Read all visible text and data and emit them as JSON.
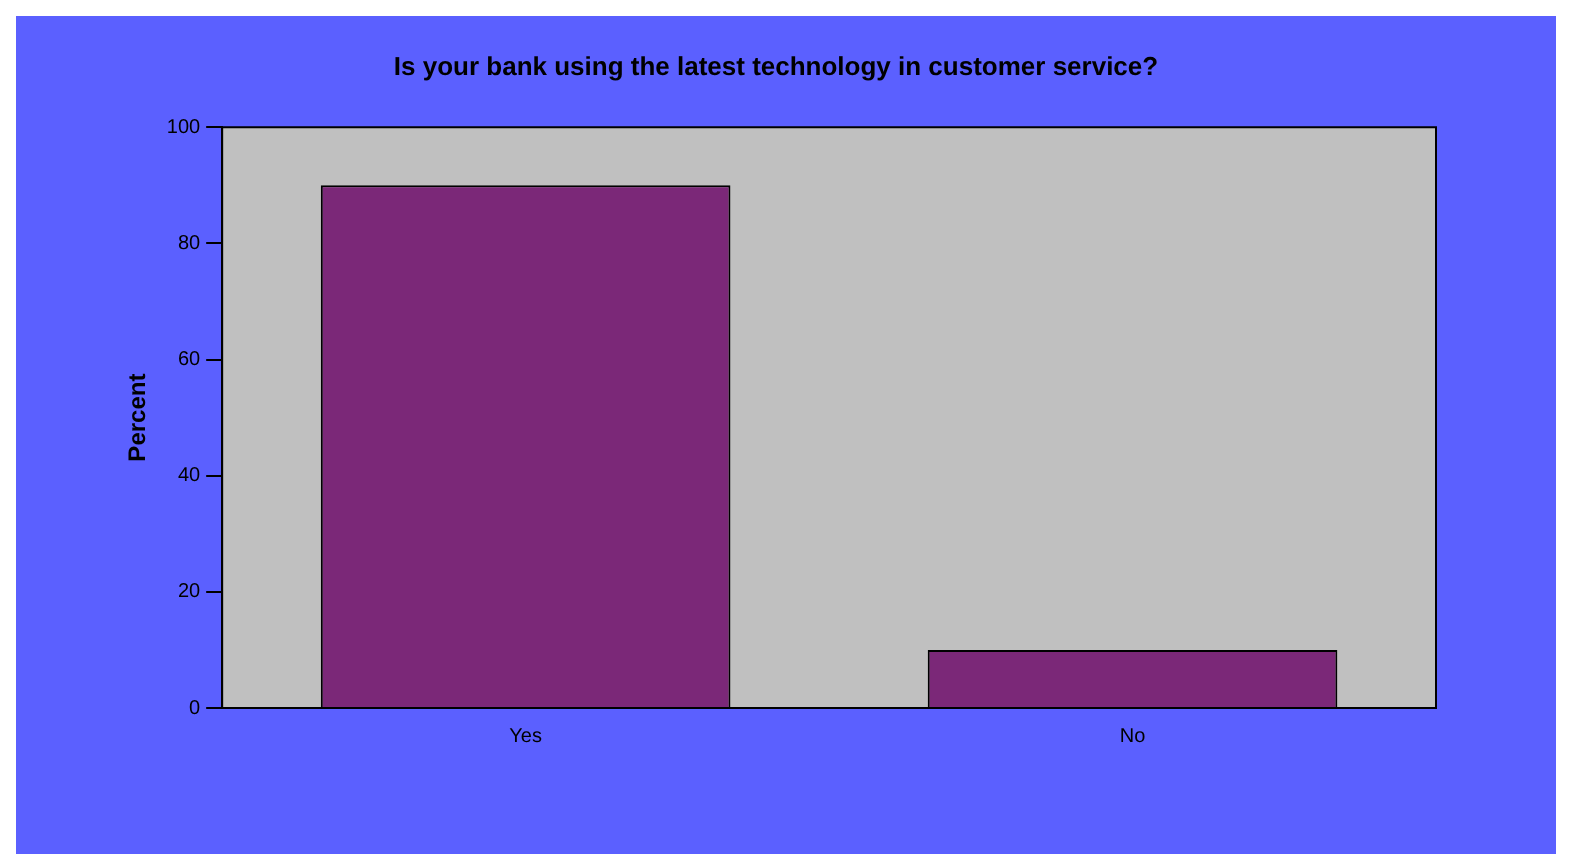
{
  "chart_data": {
    "type": "bar",
    "title": "Is your bank using the latest technology in customer service?",
    "ylabel": "Percent",
    "categories": [
      "Yes",
      "No"
    ],
    "values": [
      90,
      10
    ],
    "color": "#7b2878",
    "ylim": [
      0,
      100
    ],
    "yticks": [
      0,
      20,
      40,
      60,
      80,
      100
    ],
    "grid": false,
    "legend": false
  }
}
